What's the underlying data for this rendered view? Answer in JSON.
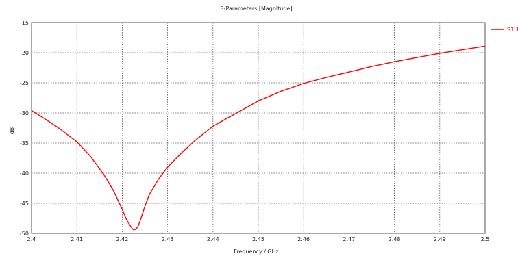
{
  "chart_data": {
    "type": "line",
    "title": "S-Parameters [Magnitude]",
    "xlabel": "Frequency / GHz",
    "ylabel": "dB",
    "xlim": [
      2.4,
      2.5
    ],
    "ylim": [
      -50,
      -15
    ],
    "xticks": [
      2.4,
      2.41,
      2.42,
      2.43,
      2.44,
      2.45,
      2.46,
      2.47,
      2.48,
      2.49,
      2.5
    ],
    "yticks": [
      -50,
      -45,
      -40,
      -35,
      -30,
      -25,
      -20,
      -15
    ],
    "xtick_labels": [
      "2.4",
      "2.41",
      "2.42",
      "2.43",
      "2.44",
      "2.45",
      "2.46",
      "2.47",
      "2.48",
      "2.49",
      "2.5"
    ],
    "ytick_labels": [
      "-50",
      "-45",
      "-40",
      "-35",
      "-30",
      "-25",
      "-20",
      "-15"
    ],
    "grid": true,
    "legend_position": "top-right",
    "series": [
      {
        "name": "S1,1",
        "color": "#ff0000",
        "x": [
          2.4,
          2.403,
          2.406,
          2.41,
          2.413,
          2.416,
          2.418,
          2.42,
          2.421,
          2.422,
          2.4225,
          2.423,
          2.4235,
          2.424,
          2.425,
          2.426,
          2.428,
          2.43,
          2.433,
          2.436,
          2.44,
          2.445,
          2.45,
          2.455,
          2.46,
          2.465,
          2.47,
          2.475,
          2.48,
          2.485,
          2.49,
          2.495,
          2.5
        ],
        "y": [
          -29.6,
          -31.0,
          -32.5,
          -34.8,
          -37.2,
          -40.3,
          -42.8,
          -46.0,
          -47.8,
          -49.0,
          -49.4,
          -49.3,
          -48.8,
          -47.8,
          -45.5,
          -43.5,
          -41.0,
          -39.0,
          -36.7,
          -34.6,
          -32.2,
          -30.1,
          -28.0,
          -26.4,
          -25.1,
          -24.1,
          -23.2,
          -22.3,
          -21.5,
          -20.8,
          -20.1,
          -19.5,
          -18.9
        ]
      }
    ]
  }
}
